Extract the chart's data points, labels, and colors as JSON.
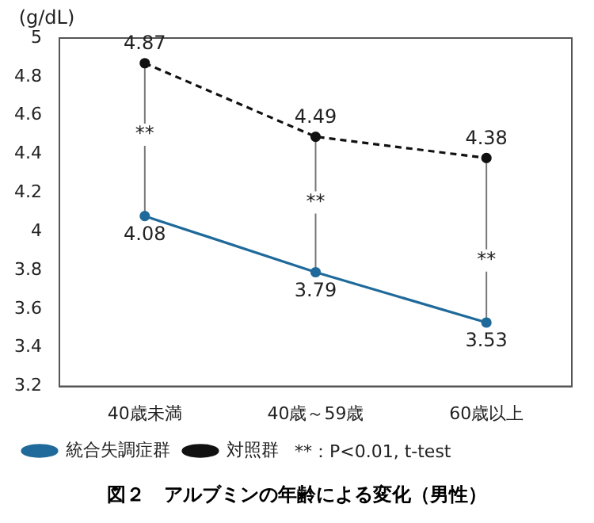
{
  "chart_data": {
    "type": "line",
    "title": "図２　アルブミンの年齢による変化（男性）",
    "ylabel": "(g/dL)",
    "categories": [
      "40歳未満",
      "40歳～59歳",
      "60歳以上"
    ],
    "series": [
      {
        "name": "統合失調症群",
        "color": "#1f6a9a",
        "values": [
          4.08,
          3.79,
          3.53
        ],
        "line_style": "solid"
      },
      {
        "name": "対照群",
        "color": "#111111",
        "values": [
          4.87,
          4.49,
          4.38
        ],
        "line_style": "dashed"
      }
    ],
    "ylim": [
      3.2,
      5
    ],
    "yticks": [
      3.2,
      3.4,
      3.6,
      3.8,
      4,
      4.2,
      4.4,
      4.6,
      4.8,
      5
    ],
    "marker": "circle",
    "data_labels": true,
    "legend": "bottom",
    "grid": false,
    "annotations": [
      {
        "text": "**",
        "x": "40歳未満",
        "y": 4.5
      },
      {
        "text": "**",
        "x": "40歳～59歳",
        "y": 4.15
      },
      {
        "text": "**",
        "x": "60歳以上",
        "y": 3.85
      },
      "**：P<0.01, t-test"
    ]
  }
}
